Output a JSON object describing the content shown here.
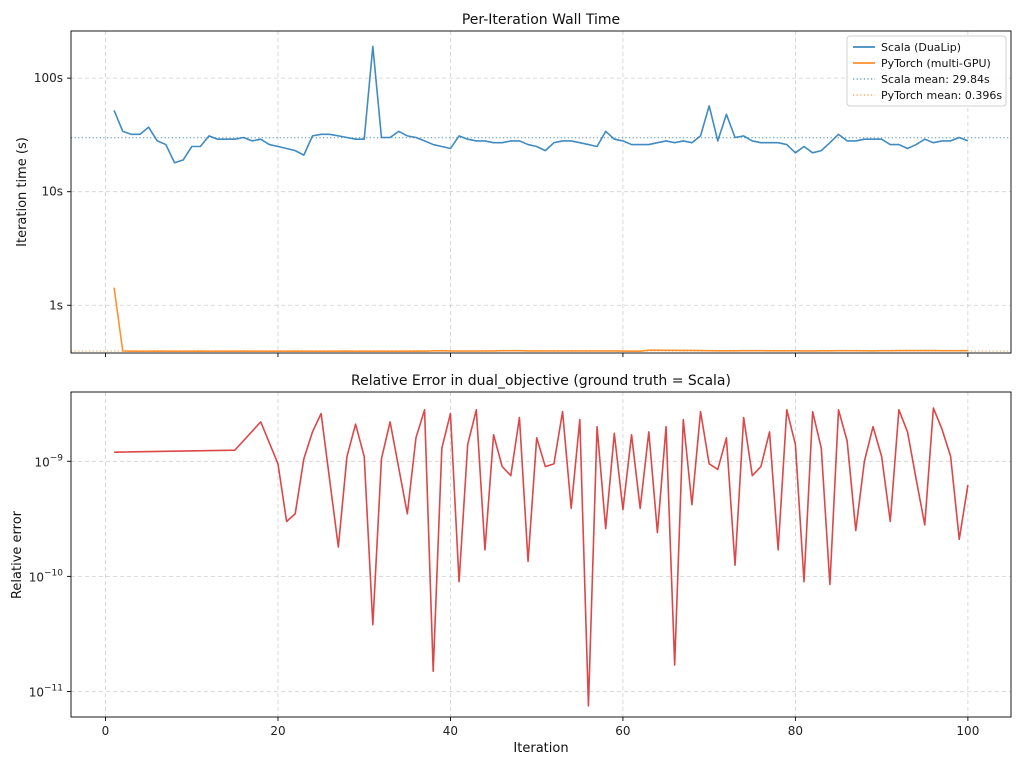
{
  "chart_data": [
    {
      "type": "line",
      "title": "Per-Iteration Wall Time",
      "xlabel": "",
      "ylabel": "Iteration time (s)",
      "yscale": "log",
      "xlim": [
        -4,
        105
      ],
      "ylim": [
        0.38,
        260
      ],
      "yticks": [
        1,
        10,
        100
      ],
      "ytick_labels": [
        "1s",
        "10s",
        "100s"
      ],
      "grid": true,
      "legend_position": "top-right",
      "series": [
        {
          "name": "Scala (DuaLip)",
          "color": "#1f77b4",
          "x": [
            1,
            2,
            3,
            4,
            5,
            6,
            7,
            8,
            9,
            10,
            11,
            12,
            13,
            14,
            15,
            16,
            17,
            18,
            19,
            20,
            21,
            22,
            23,
            24,
            25,
            26,
            27,
            28,
            29,
            30,
            31,
            32,
            33,
            34,
            35,
            36,
            37,
            38,
            39,
            40,
            41,
            42,
            43,
            44,
            45,
            46,
            47,
            48,
            49,
            50,
            51,
            52,
            53,
            54,
            55,
            56,
            57,
            58,
            59,
            60,
            61,
            62,
            63,
            64,
            65,
            66,
            67,
            68,
            69,
            70,
            71,
            72,
            73,
            74,
            75,
            76,
            77,
            78,
            79,
            80,
            81,
            82,
            83,
            84,
            85,
            86,
            87,
            88,
            89,
            90,
            91,
            92,
            93,
            94,
            95,
            96,
            97,
            98,
            99,
            100
          ],
          "values": [
            52,
            34,
            32,
            32,
            37,
            28,
            26,
            18,
            19,
            25,
            25,
            31,
            29,
            29,
            29,
            30,
            28,
            29,
            26,
            25,
            24,
            23,
            21,
            31,
            32,
            32,
            31,
            30,
            29,
            29,
            190,
            30,
            30,
            34,
            31,
            30,
            28,
            26,
            25,
            24,
            31,
            29,
            28,
            28,
            27,
            27,
            28,
            28,
            26,
            25,
            23,
            27,
            28,
            28,
            27,
            26,
            25,
            34,
            29,
            28,
            26,
            26,
            26,
            27,
            28,
            27,
            28,
            27,
            31,
            57,
            28,
            48,
            30,
            31,
            28,
            27,
            27,
            27,
            26,
            22,
            25,
            22,
            23,
            27,
            32,
            28,
            28,
            29,
            29,
            29,
            26,
            26,
            24,
            26,
            29,
            27,
            28,
            28,
            30,
            28
          ]
        },
        {
          "name": "PyTorch (multi-GPU)",
          "color": "#ff7f0e",
          "x": [
            1,
            2,
            3,
            4,
            5,
            6,
            7,
            8,
            9,
            10,
            11,
            12,
            13,
            14,
            15,
            16,
            17,
            18,
            19,
            20,
            21,
            22,
            23,
            24,
            25,
            26,
            27,
            28,
            29,
            30,
            31,
            32,
            33,
            34,
            35,
            36,
            37,
            38,
            39,
            40,
            41,
            42,
            43,
            44,
            45,
            46,
            47,
            48,
            49,
            50,
            51,
            52,
            53,
            54,
            55,
            56,
            57,
            58,
            59,
            60,
            61,
            62,
            63,
            64,
            65,
            66,
            67,
            68,
            69,
            70,
            71,
            72,
            73,
            74,
            75,
            76,
            77,
            78,
            79,
            80,
            81,
            82,
            83,
            84,
            85,
            86,
            87,
            88,
            89,
            90,
            91,
            92,
            93,
            94,
            95,
            96,
            97,
            98,
            99,
            100
          ],
          "values": [
            1.43,
            0.396,
            0.394,
            0.394,
            0.394,
            0.395,
            0.394,
            0.394,
            0.394,
            0.394,
            0.395,
            0.394,
            0.394,
            0.394,
            0.394,
            0.395,
            0.394,
            0.394,
            0.394,
            0.394,
            0.394,
            0.395,
            0.394,
            0.394,
            0.394,
            0.394,
            0.394,
            0.395,
            0.394,
            0.394,
            0.394,
            0.394,
            0.394,
            0.394,
            0.394,
            0.395,
            0.394,
            0.397,
            0.397,
            0.396,
            0.395,
            0.395,
            0.395,
            0.396,
            0.396,
            0.398,
            0.398,
            0.398,
            0.396,
            0.396,
            0.396,
            0.396,
            0.396,
            0.396,
            0.396,
            0.396,
            0.396,
            0.396,
            0.396,
            0.395,
            0.394,
            0.394,
            0.402,
            0.402,
            0.401,
            0.401,
            0.4,
            0.4,
            0.399,
            0.398,
            0.397,
            0.397,
            0.397,
            0.398,
            0.398,
            0.398,
            0.397,
            0.397,
            0.397,
            0.397,
            0.396,
            0.396,
            0.397,
            0.397,
            0.398,
            0.398,
            0.398,
            0.397,
            0.396,
            0.398,
            0.398,
            0.399,
            0.399,
            0.399,
            0.399,
            0.399,
            0.398,
            0.398,
            0.398,
            0.398
          ]
        },
        {
          "name": "Scala mean: 29.84s",
          "color": "#1f77b4",
          "style": "dotted",
          "hline": 29.84
        },
        {
          "name": "PyTorch mean: 0.396s",
          "color": "#ff7f0e",
          "style": "dotted",
          "hline": 0.396
        }
      ]
    },
    {
      "type": "line",
      "title": "Relative Error in dual_objective  (ground truth = Scala)",
      "xlabel": "Iteration",
      "ylabel": "Relative error",
      "yscale": "log",
      "xlim": [
        -4,
        105
      ],
      "ylim": [
        6e-12,
        4e-09
      ],
      "xticks": [
        0,
        20,
        40,
        60,
        80,
        100
      ],
      "yticks": [
        1e-11,
        1e-10,
        1e-09
      ],
      "ytick_labels": [
        [
          "10",
          "−11"
        ],
        [
          "10",
          "−10"
        ],
        [
          "10",
          "−9"
        ]
      ],
      "grid": true,
      "series": [
        {
          "name": "",
          "color": "#d62728",
          "x": [
            1,
            15,
            18,
            20,
            21,
            22,
            23,
            24,
            25,
            27,
            28,
            29,
            30,
            31,
            32,
            33,
            35,
            36,
            37,
            38,
            39,
            40,
            41,
            42,
            43,
            44,
            45,
            46,
            47,
            48,
            49,
            50,
            51,
            52,
            53,
            54,
            55,
            56,
            57,
            58,
            59,
            60,
            61,
            62,
            63,
            64,
            65,
            66,
            67,
            68,
            69,
            70,
            71,
            72,
            73,
            74,
            75,
            76,
            77,
            78,
            79,
            80,
            81,
            82,
            83,
            84,
            85,
            86,
            87,
            88,
            89,
            90,
            91,
            92,
            93,
            94,
            95,
            96,
            97,
            98,
            99,
            100
          ],
          "values": [
            1.2e-09,
            1.25e-09,
            2.2e-09,
            9.5e-10,
            3e-10,
            3.5e-10,
            1.05e-09,
            1.8e-09,
            2.6e-09,
            1.8e-10,
            1.1e-09,
            2.1e-09,
            1.1e-09,
            3.8e-11,
            1.05e-09,
            2.2e-09,
            3.5e-10,
            1.6e-09,
            2.8e-09,
            1.5e-11,
            1.3e-09,
            2.6e-09,
            9e-11,
            1.4e-09,
            2.8e-09,
            1.7e-10,
            1.7e-09,
            9e-10,
            7.5e-10,
            2.4e-09,
            1.35e-10,
            1.6e-09,
            9e-10,
            9.5e-10,
            2.7e-09,
            3.9e-10,
            2.3e-09,
            7.5e-12,
            2e-09,
            2.6e-10,
            1.75e-09,
            3.8e-10,
            1.7e-09,
            3.9e-10,
            1.8e-09,
            2.4e-10,
            2e-09,
            1.7e-11,
            2.3e-09,
            4.2e-10,
            2.7e-09,
            9.5e-10,
            8.5e-10,
            1.6e-09,
            1.25e-10,
            2.4e-09,
            7.5e-10,
            9e-10,
            1.8e-09,
            1.7e-10,
            2.8e-09,
            1.4e-09,
            9e-11,
            2.7e-09,
            1.3e-09,
            8.5e-11,
            2.8e-09,
            1.5e-09,
            2.5e-10,
            1e-09,
            2e-09,
            1.1e-09,
            3e-10,
            2.8e-09,
            1.8e-09,
            7e-10,
            2.8e-10,
            2.9e-09,
            1.9e-09,
            1.1e-09,
            2.1e-10,
            6.2e-10
          ]
        }
      ]
    }
  ]
}
